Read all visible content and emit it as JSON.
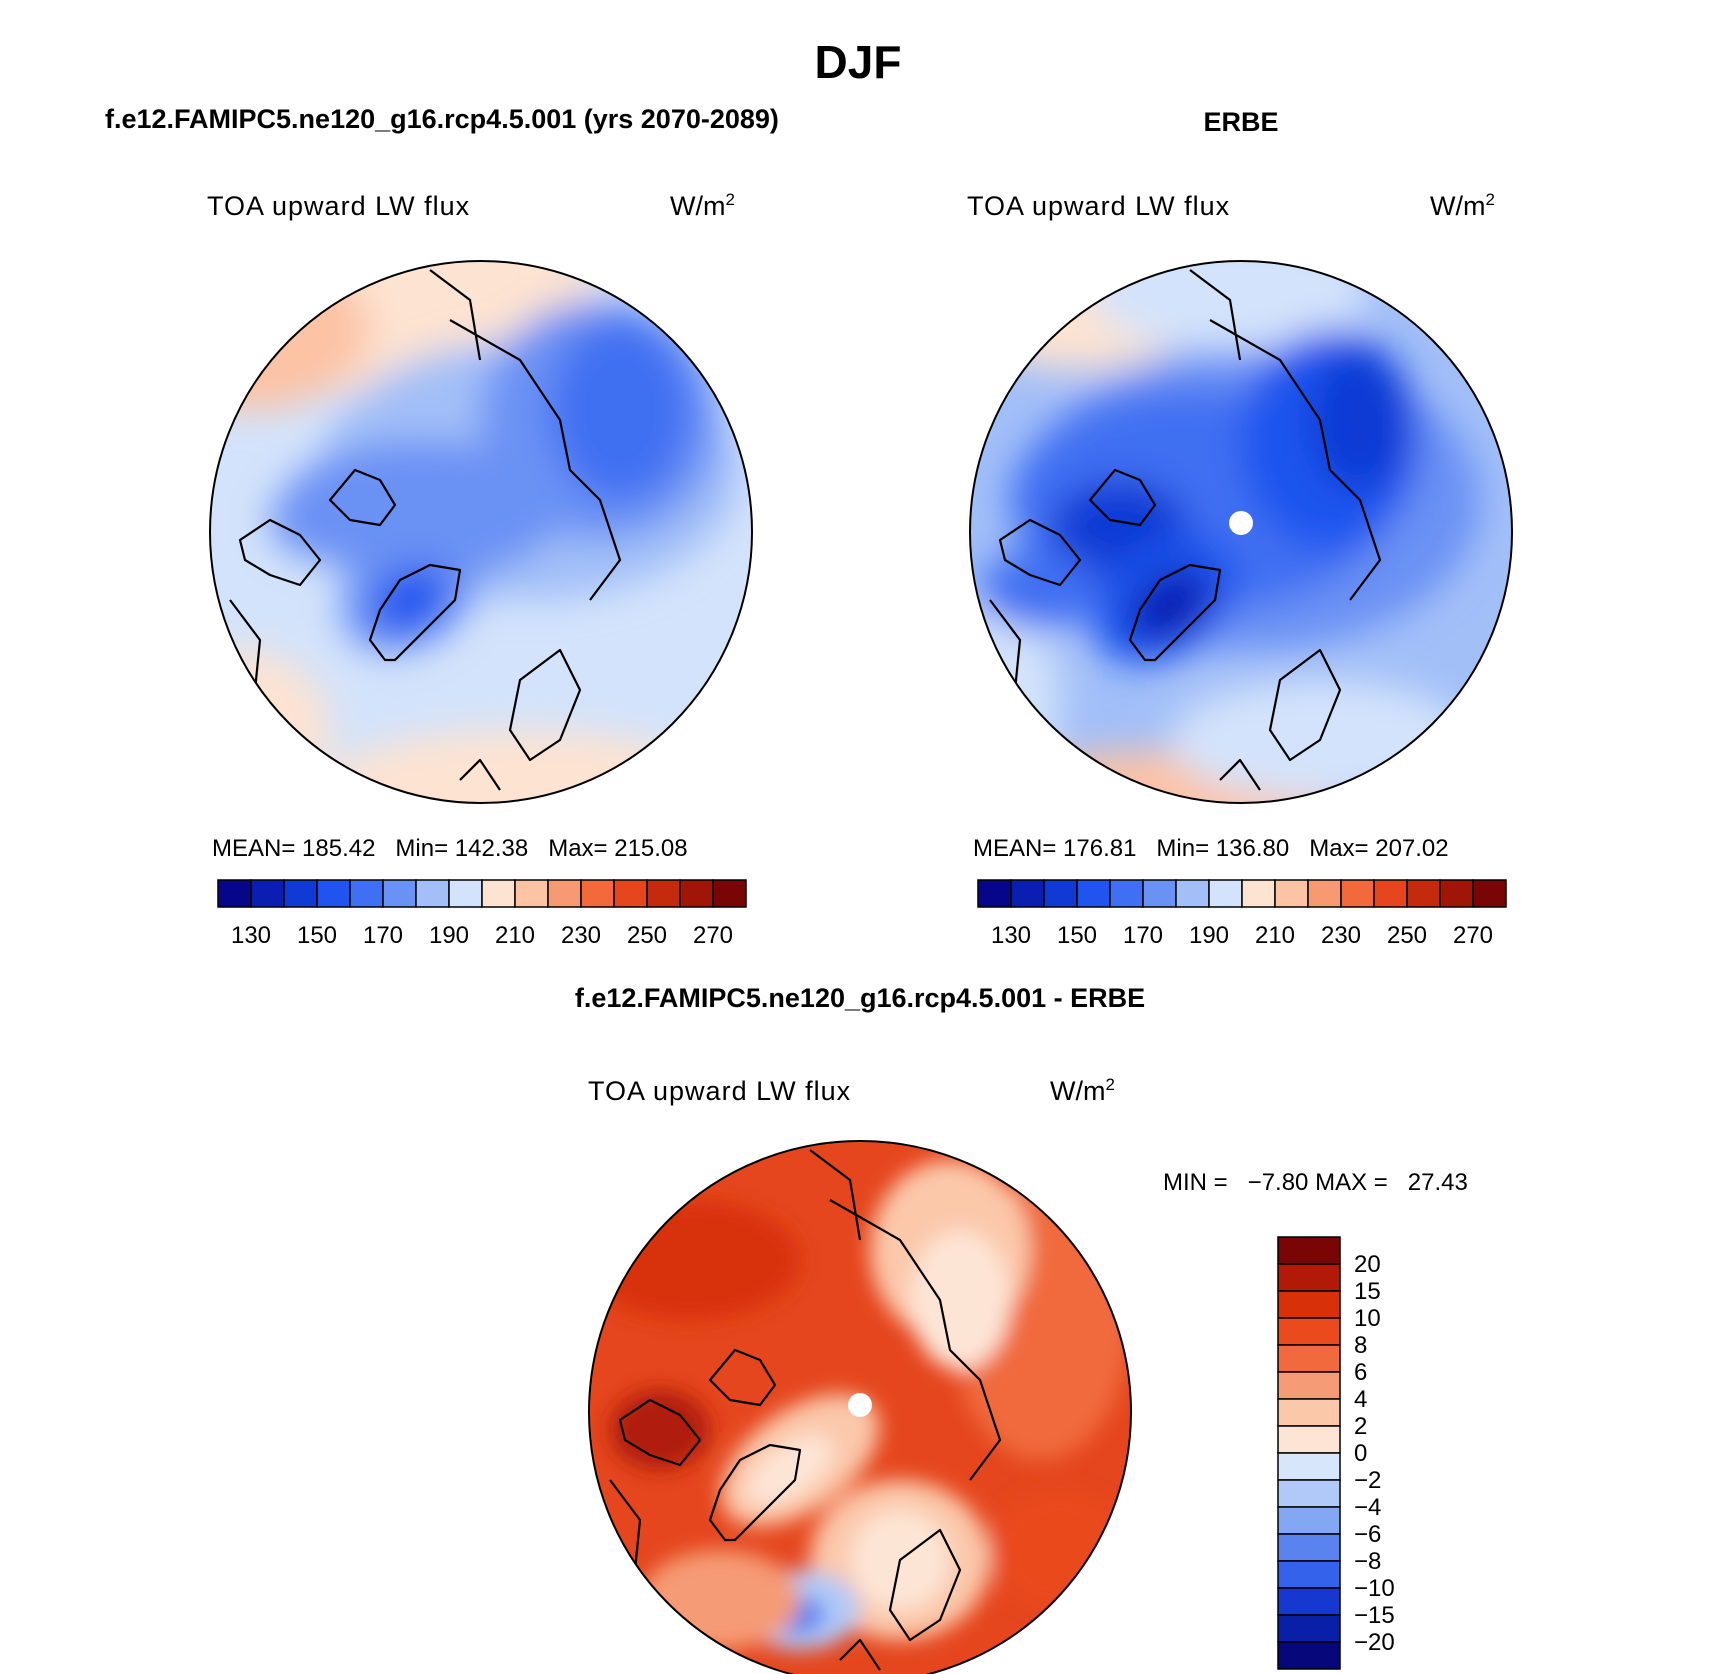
{
  "page": {
    "title": "DJF",
    "panel_titles": [
      "f.e12.FAMIPC5.ne120_g16.rcp4.5.001 (yrs 2070-2089)",
      "ERBE",
      "f.e12.FAMIPC5.ne120_g16.rcp4.5.001 - ERBE"
    ]
  },
  "chart_data": [
    {
      "type": "heatmap",
      "projection": "north polar stereographic",
      "title": "f.e12.FAMIPC5.ne120_g16.rcp4.5.001 (yrs 2070-2089)",
      "variable": "TOA upward LW flux",
      "units_base": "W/m",
      "units_exp": "2",
      "stats_text": "MEAN= 185.42   Min= 142.38   Max= 215.08",
      "stats": {
        "mean": 185.42,
        "min": 142.38,
        "max": 215.08
      },
      "colorbar": {
        "orientation": "horizontal",
        "levels": [
          130,
          140,
          150,
          160,
          170,
          180,
          190,
          200,
          210,
          220,
          230,
          240,
          250,
          260,
          270
        ],
        "tick_labels": [
          "130",
          "150",
          "170",
          "190",
          "210",
          "230",
          "250",
          "270"
        ],
        "colors": [
          "#06068a",
          "#0a1fb2",
          "#0f3bd4",
          "#1f55ee",
          "#3f6ff2",
          "#6a91f4",
          "#a2bff8",
          "#d3e3fb",
          "#fde3d1",
          "#fcc3a5",
          "#f79a72",
          "#f26a3c",
          "#e5461d",
          "#c42a0c",
          "#a01505",
          "#7a0505"
        ]
      }
    },
    {
      "type": "heatmap",
      "projection": "north polar stereographic",
      "title": "ERBE",
      "variable": "TOA upward LW flux",
      "units_base": "W/m",
      "units_exp": "2",
      "stats_text": "MEAN= 176.81   Min= 136.80   Max= 207.02",
      "stats": {
        "mean": 176.81,
        "min": 136.8,
        "max": 207.02
      },
      "colorbar": {
        "orientation": "horizontal",
        "levels": [
          130,
          140,
          150,
          160,
          170,
          180,
          190,
          200,
          210,
          220,
          230,
          240,
          250,
          260,
          270
        ],
        "tick_labels": [
          "130",
          "150",
          "170",
          "190",
          "210",
          "230",
          "250",
          "270"
        ],
        "colors": [
          "#06068a",
          "#0a1fb2",
          "#0f3bd4",
          "#1f55ee",
          "#3f6ff2",
          "#6a91f4",
          "#a2bff8",
          "#d3e3fb",
          "#fde3d1",
          "#fcc3a5",
          "#f79a72",
          "#f26a3c",
          "#e5461d",
          "#c42a0c",
          "#a01505",
          "#7a0505"
        ]
      }
    },
    {
      "type": "heatmap",
      "projection": "north polar stereographic",
      "title": "f.e12.FAMIPC5.ne120_g16.rcp4.5.001 - ERBE",
      "variable": "TOA upward LW flux",
      "units_base": "W/m",
      "units_exp": "2",
      "stats_text": "MIN =   −7.80 MAX =   27.43",
      "stats": {
        "min": -7.8,
        "max": 27.43
      },
      "colorbar": {
        "orientation": "vertical",
        "levels": [
          20,
          15,
          10,
          8,
          6,
          4,
          2,
          0,
          -2,
          -4,
          -6,
          -8,
          -10,
          -15,
          -20
        ],
        "tick_labels": [
          "20",
          "15",
          "10",
          "8",
          "6",
          "4",
          "2",
          "0",
          "−2",
          "−4",
          "−6",
          "−8",
          "−10",
          "−15",
          "−20"
        ],
        "colors": [
          "#7a0505",
          "#b01a07",
          "#d83008",
          "#ea4a1c",
          "#f06a3e",
          "#f59b75",
          "#fbc8aa",
          "#fde5d6",
          "#d7e6fb",
          "#b0c9f8",
          "#84a7f4",
          "#5b83ef",
          "#3562ea",
          "#1638d0",
          "#0a1fa8",
          "#06077a"
        ]
      }
    }
  ]
}
